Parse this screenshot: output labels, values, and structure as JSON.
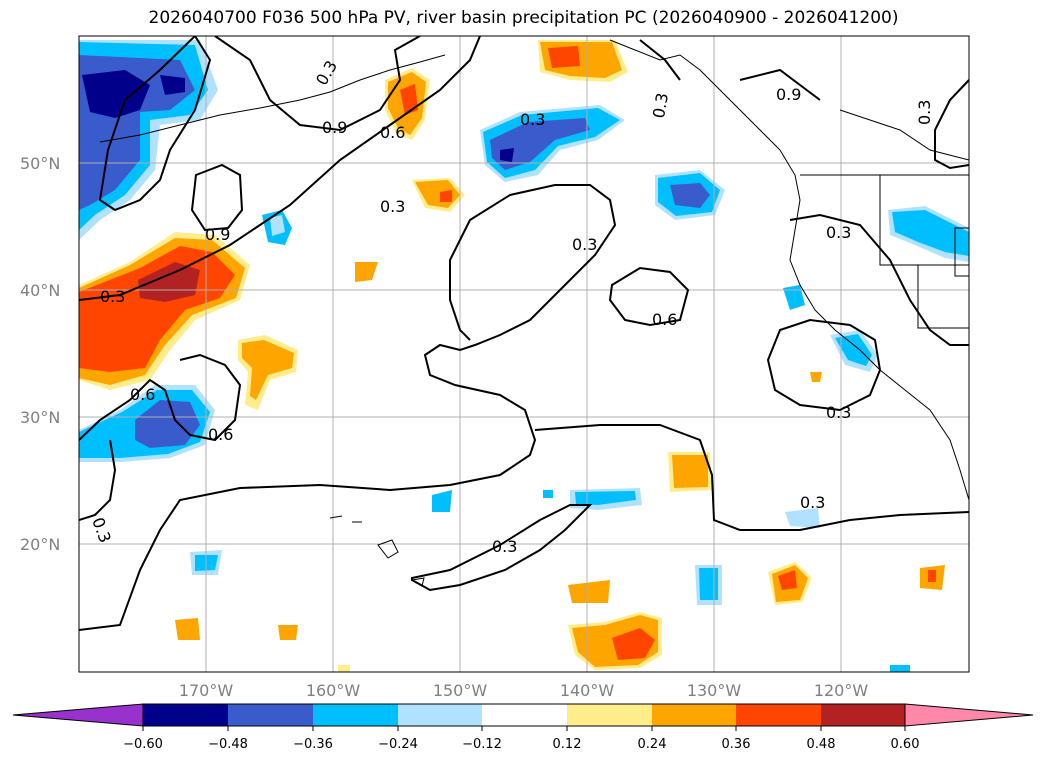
{
  "title": "2026040700 F036 500 hPa PV, river basin precipitation PC (2026040900 - 2026041200)",
  "map": {
    "lon_labels": [
      "170°W",
      "160°W",
      "150°W",
      "140°W",
      "130°W",
      "120°W"
    ],
    "lat_labels": [
      "50°N",
      "40°N",
      "30°N",
      "20°N"
    ],
    "contour_labels": [
      "0.9",
      "0.6",
      "0.3",
      "0.9",
      "0.3",
      "0.3",
      "0.9",
      "0.3",
      "0.3",
      "0.3",
      "0.6",
      "0.3",
      "0.6",
      "0.6",
      "0.3",
      "0.3",
      "0.3",
      "0.3",
      "0.3"
    ]
  },
  "colorbar": {
    "tick_labels": [
      "−0.60",
      "−0.48",
      "−0.36",
      "−0.24",
      "−0.12",
      "0.12",
      "0.24",
      "0.36",
      "0.48",
      "0.60"
    ],
    "colors": [
      "#9932cc",
      "#00008b",
      "#3a5bcc",
      "#00bfff",
      "#b0e2ff",
      "#ffffff",
      "#ffec8b",
      "#ffa500",
      "#ff4500",
      "#b22222",
      "#ff88aa"
    ]
  }
}
